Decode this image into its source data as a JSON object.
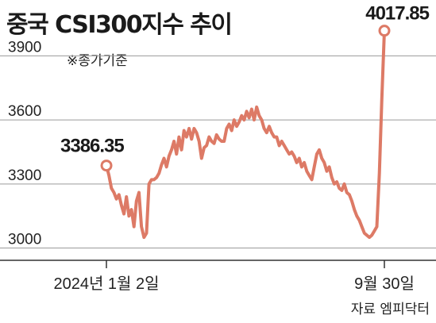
{
  "chart_data": {
    "type": "line",
    "title": "중국 CSI300지수 추이",
    "note": "※종가기준",
    "source": "자료 엠피닥터",
    "ylim": [
      2950,
      4050
    ],
    "yticks": [
      3000,
      3300,
      3600,
      3900
    ],
    "grid": true,
    "xlabels": [
      "2024년 1월 2일",
      "9월 30일"
    ],
    "annotations": {
      "start": {
        "label": "3386.35",
        "value": 3386.35
      },
      "end": {
        "label": "4017.85",
        "value": 4017.85
      }
    },
    "series": [
      {
        "color": "#dd7a66",
        "values": [
          3386.35,
          3340,
          3280,
          3260,
          3230,
          3250,
          3200,
          3160,
          3240,
          3150,
          3180,
          3100,
          3220,
          3260,
          3100,
          3050,
          3070,
          3300,
          3320,
          3320,
          3330,
          3350,
          3390,
          3420,
          3380,
          3430,
          3460,
          3500,
          3440,
          3520,
          3460,
          3550,
          3520,
          3560,
          3510,
          3560,
          3540,
          3500,
          3420,
          3470,
          3480,
          3520,
          3500,
          3490,
          3530,
          3510,
          3500,
          3500,
          3560,
          3580,
          3550,
          3600,
          3570,
          3590,
          3620,
          3600,
          3640,
          3610,
          3650,
          3600,
          3660,
          3620,
          3600,
          3560,
          3540,
          3570,
          3540,
          3520,
          3520,
          3480,
          3500,
          3480,
          3460,
          3440,
          3450,
          3430,
          3400,
          3420,
          3380,
          3400,
          3360,
          3340,
          3320,
          3380,
          3440,
          3460,
          3420,
          3400,
          3360,
          3380,
          3330,
          3300,
          3310,
          3280,
          3270,
          3300,
          3260,
          3250,
          3220,
          3180,
          3150,
          3130,
          3100,
          3070,
          3060,
          3050,
          3060,
          3080,
          3100,
          3350,
          3700,
          4017.85
        ]
      }
    ]
  }
}
